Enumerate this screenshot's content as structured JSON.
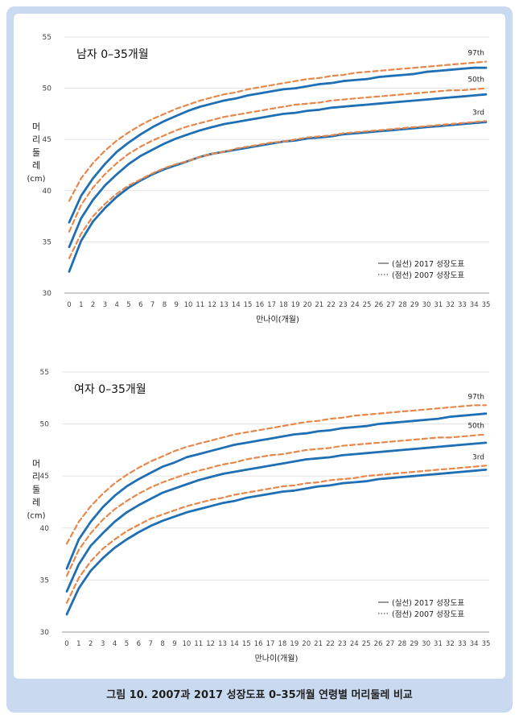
{
  "caption": "그림 10. 2007과 2017 성장도표 0–35개월 연령별 머리둘레 비교",
  "colors": {
    "frame": "#c9d9ef",
    "solid": "#1f6fb5",
    "dashed": "#e8874a",
    "grid": "#e3e3e3",
    "axis": "#9a9a9a",
    "text": "#444444"
  },
  "chart_data": [
    {
      "type": "line",
      "title": "남자 0–35개월",
      "xlabel": "만나이(개월)",
      "ylabel": [
        "머",
        "리",
        "둘",
        "레",
        "(cm)"
      ],
      "ylim": [
        30,
        55
      ],
      "yticks": [
        30,
        35,
        40,
        45,
        50,
        55
      ],
      "x": [
        0,
        1,
        2,
        3,
        4,
        5,
        6,
        7,
        8,
        9,
        10,
        11,
        12,
        13,
        14,
        15,
        16,
        17,
        18,
        19,
        20,
        21,
        22,
        23,
        24,
        25,
        26,
        27,
        28,
        29,
        30,
        31,
        32,
        33,
        34,
        35
      ],
      "grid": "horizontal",
      "legend": {
        "position": "bottom-right",
        "items": [
          {
            "style": "solid",
            "label": "(실선) 2017 성장도표"
          },
          {
            "style": "dotted",
            "label": "(점선) 2007 성장도표"
          }
        ]
      },
      "series": [
        {
          "name": "97th",
          "source": "2017",
          "style": "solid",
          "values": [
            36.9,
            39.5,
            41.2,
            42.6,
            43.8,
            44.7,
            45.5,
            46.2,
            46.8,
            47.3,
            47.8,
            48.2,
            48.5,
            48.8,
            49.0,
            49.3,
            49.5,
            49.7,
            49.9,
            50.0,
            50.2,
            50.4,
            50.5,
            50.7,
            50.8,
            50.9,
            51.1,
            51.2,
            51.3,
            51.4,
            51.6,
            51.7,
            51.8,
            51.9,
            52.0,
            52.0
          ]
        },
        {
          "name": "50th",
          "source": "2017",
          "style": "solid",
          "values": [
            34.5,
            37.3,
            39.1,
            40.5,
            41.6,
            42.6,
            43.4,
            44.0,
            44.6,
            45.1,
            45.5,
            45.9,
            46.2,
            46.5,
            46.7,
            46.9,
            47.1,
            47.3,
            47.5,
            47.6,
            47.8,
            47.9,
            48.1,
            48.2,
            48.3,
            48.4,
            48.5,
            48.6,
            48.7,
            48.8,
            48.9,
            49.0,
            49.1,
            49.2,
            49.3,
            49.4
          ]
        },
        {
          "name": "3rd",
          "source": "2017",
          "style": "solid",
          "values": [
            32.1,
            35.1,
            37.0,
            38.3,
            39.4,
            40.3,
            41.0,
            41.6,
            42.1,
            42.5,
            42.9,
            43.3,
            43.6,
            43.8,
            44.0,
            44.2,
            44.4,
            44.6,
            44.8,
            44.9,
            45.1,
            45.2,
            45.3,
            45.5,
            45.6,
            45.7,
            45.8,
            45.9,
            46.0,
            46.1,
            46.2,
            46.3,
            46.4,
            46.5,
            46.6,
            46.7
          ]
        },
        {
          "name": "97th",
          "source": "2007",
          "style": "dashed",
          "values": [
            39.0,
            41.2,
            42.7,
            43.9,
            44.9,
            45.7,
            46.4,
            47.0,
            47.5,
            48.0,
            48.4,
            48.8,
            49.1,
            49.4,
            49.6,
            49.9,
            50.1,
            50.3,
            50.5,
            50.7,
            50.9,
            51.0,
            51.2,
            51.3,
            51.5,
            51.6,
            51.7,
            51.8,
            51.9,
            52.0,
            52.1,
            52.2,
            52.3,
            52.4,
            52.5,
            52.6
          ]
        },
        {
          "name": "50th",
          "source": "2007",
          "style": "dashed",
          "values": [
            36.0,
            38.6,
            40.3,
            41.6,
            42.7,
            43.6,
            44.3,
            44.9,
            45.4,
            45.9,
            46.3,
            46.6,
            46.9,
            47.2,
            47.4,
            47.6,
            47.8,
            48.0,
            48.2,
            48.4,
            48.5,
            48.6,
            48.8,
            48.9,
            49.0,
            49.1,
            49.2,
            49.3,
            49.4,
            49.5,
            49.6,
            49.7,
            49.8,
            49.8,
            49.9,
            50.0
          ]
        },
        {
          "name": "3rd",
          "source": "2007",
          "style": "dashed",
          "values": [
            33.4,
            35.8,
            37.5,
            38.7,
            39.7,
            40.5,
            41.1,
            41.7,
            42.2,
            42.6,
            42.9,
            43.3,
            43.6,
            43.8,
            44.1,
            44.3,
            44.5,
            44.7,
            44.8,
            45.0,
            45.2,
            45.3,
            45.4,
            45.6,
            45.7,
            45.8,
            45.9,
            46.0,
            46.1,
            46.2,
            46.3,
            46.4,
            46.5,
            46.6,
            46.7,
            46.8
          ]
        }
      ]
    },
    {
      "type": "line",
      "title": "여자 0–35개월",
      "xlabel": "만나이(개월)",
      "ylabel": [
        "머",
        "리",
        "둘",
        "레",
        "(cm)"
      ],
      "ylim": [
        30,
        55
      ],
      "yticks": [
        30,
        35,
        40,
        45,
        50,
        55
      ],
      "x": [
        0,
        1,
        2,
        3,
        4,
        5,
        6,
        7,
        8,
        9,
        10,
        11,
        12,
        13,
        14,
        15,
        16,
        17,
        18,
        19,
        20,
        21,
        22,
        23,
        24,
        25,
        26,
        27,
        28,
        29,
        30,
        31,
        32,
        33,
        34,
        35
      ],
      "grid": "horizontal",
      "legend": {
        "position": "bottom-right",
        "items": [
          {
            "style": "solid",
            "label": "(실선) 2017 성장도표"
          },
          {
            "style": "dotted",
            "label": "(점선) 2007 성장도표"
          }
        ]
      },
      "series": [
        {
          "name": "97th",
          "source": "2017",
          "style": "solid",
          "values": [
            36.1,
            38.9,
            40.6,
            42.0,
            43.1,
            44.0,
            44.7,
            45.3,
            45.9,
            46.3,
            46.8,
            47.1,
            47.4,
            47.7,
            48.0,
            48.2,
            48.4,
            48.6,
            48.8,
            49.0,
            49.1,
            49.3,
            49.4,
            49.6,
            49.7,
            49.8,
            50.0,
            50.1,
            50.2,
            50.3,
            50.4,
            50.5,
            50.7,
            50.8,
            50.9,
            51.0
          ]
        },
        {
          "name": "50th",
          "source": "2017",
          "style": "solid",
          "values": [
            33.9,
            36.5,
            38.3,
            39.5,
            40.6,
            41.5,
            42.2,
            42.8,
            43.4,
            43.8,
            44.2,
            44.6,
            44.9,
            45.2,
            45.4,
            45.6,
            45.8,
            46.0,
            46.2,
            46.4,
            46.6,
            46.7,
            46.8,
            47.0,
            47.1,
            47.2,
            47.3,
            47.4,
            47.5,
            47.6,
            47.7,
            47.8,
            47.9,
            48.0,
            48.1,
            48.2
          ]
        },
        {
          "name": "3rd",
          "source": "2017",
          "style": "solid",
          "values": [
            31.7,
            34.2,
            35.9,
            37.1,
            38.1,
            38.9,
            39.6,
            40.2,
            40.7,
            41.1,
            41.5,
            41.8,
            42.1,
            42.4,
            42.6,
            42.9,
            43.1,
            43.3,
            43.5,
            43.6,
            43.8,
            44.0,
            44.1,
            44.3,
            44.4,
            44.5,
            44.7,
            44.8,
            44.9,
            45.0,
            45.1,
            45.2,
            45.3,
            45.4,
            45.5,
            45.6
          ]
        },
        {
          "name": "97th",
          "source": "2007",
          "style": "dashed",
          "values": [
            38.5,
            40.6,
            42.1,
            43.3,
            44.3,
            45.1,
            45.8,
            46.4,
            46.9,
            47.4,
            47.8,
            48.1,
            48.4,
            48.7,
            49.0,
            49.2,
            49.4,
            49.6,
            49.8,
            50.0,
            50.2,
            50.3,
            50.5,
            50.6,
            50.8,
            50.9,
            51.0,
            51.1,
            51.2,
            51.3,
            51.4,
            51.5,
            51.6,
            51.7,
            51.8,
            51.8
          ]
        },
        {
          "name": "50th",
          "source": "2007",
          "style": "dashed",
          "values": [
            35.4,
            37.9,
            39.5,
            40.8,
            41.8,
            42.6,
            43.3,
            43.9,
            44.4,
            44.8,
            45.2,
            45.5,
            45.8,
            46.1,
            46.3,
            46.6,
            46.8,
            47.0,
            47.1,
            47.3,
            47.5,
            47.6,
            47.7,
            47.9,
            48.0,
            48.1,
            48.2,
            48.3,
            48.4,
            48.5,
            48.6,
            48.7,
            48.7,
            48.8,
            48.9,
            49.0
          ]
        },
        {
          "name": "3rd",
          "source": "2007",
          "style": "dashed",
          "values": [
            32.8,
            35.2,
            36.8,
            38.0,
            38.9,
            39.7,
            40.3,
            40.9,
            41.3,
            41.7,
            42.1,
            42.4,
            42.7,
            42.9,
            43.2,
            43.4,
            43.6,
            43.8,
            44.0,
            44.1,
            44.3,
            44.4,
            44.6,
            44.7,
            44.8,
            45.0,
            45.1,
            45.2,
            45.3,
            45.4,
            45.5,
            45.6,
            45.7,
            45.8,
            45.9,
            46.0
          ]
        }
      ]
    }
  ]
}
